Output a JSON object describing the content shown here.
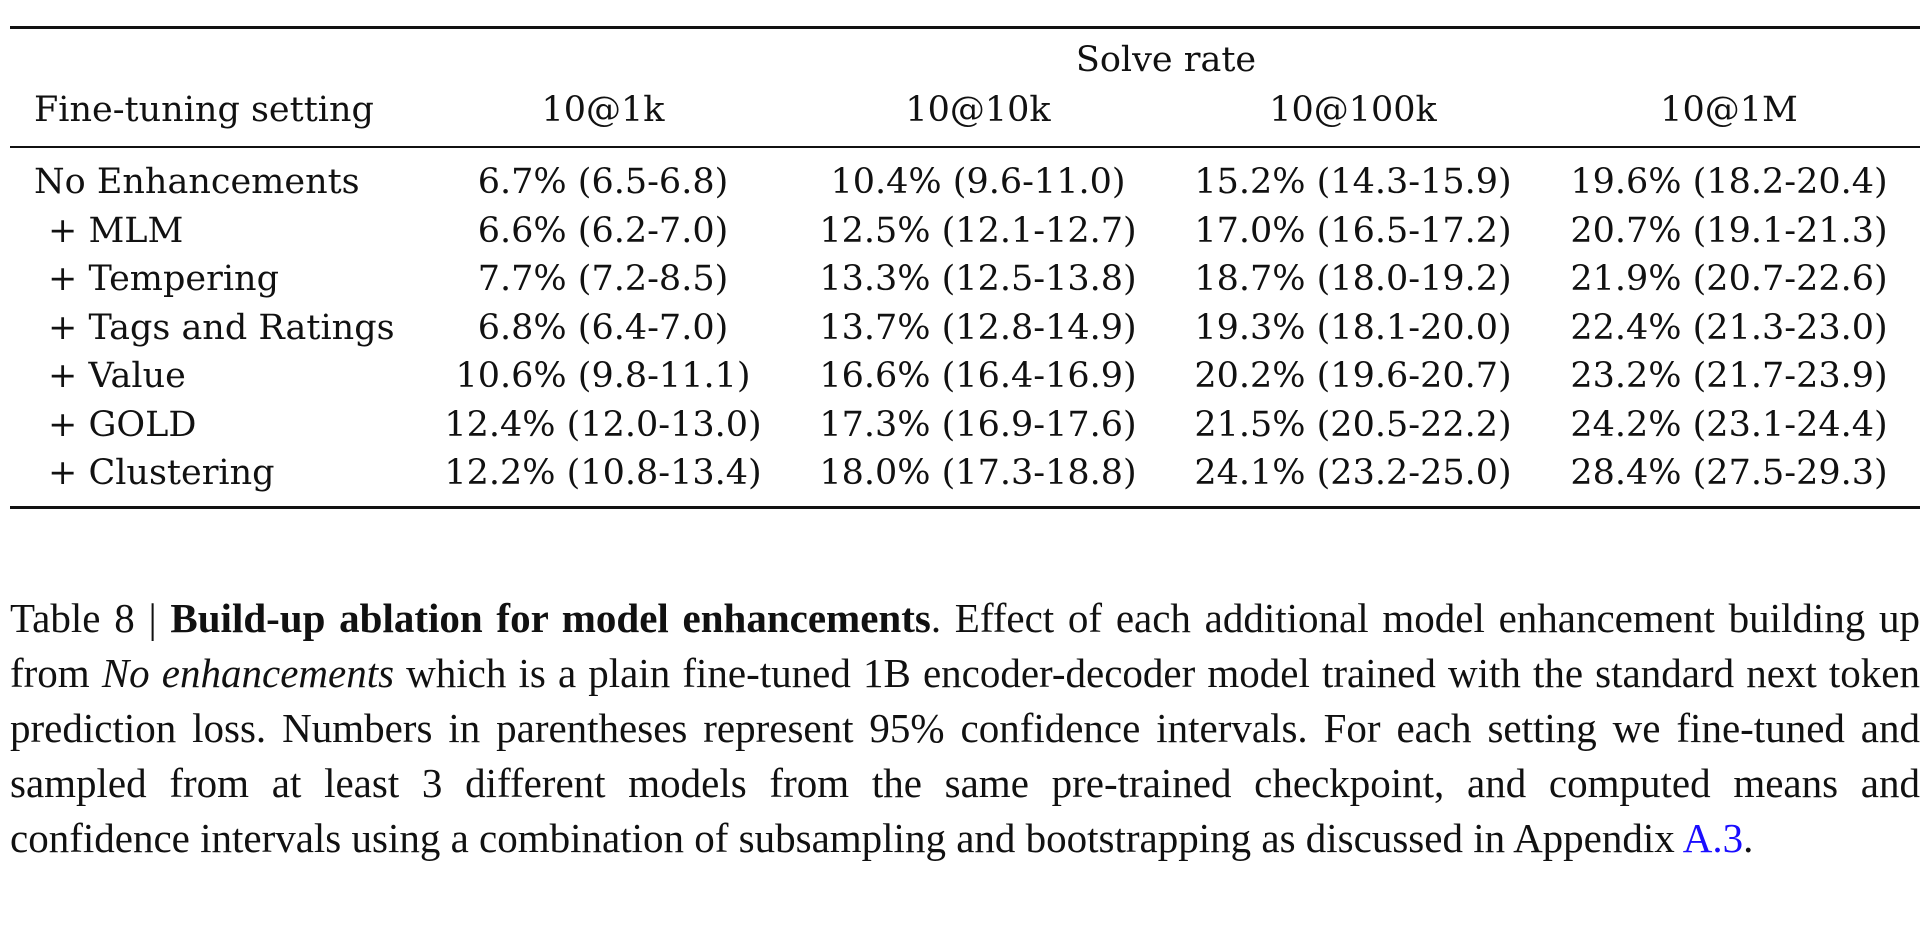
{
  "table": {
    "group_header": "Solve rate",
    "row_header": "Fine-tuning setting",
    "columns": [
      "10@1k",
      "10@10k",
      "10@100k",
      "10@1M"
    ],
    "rows": [
      {
        "label": "No Enhancements",
        "values": [
          "6.7% (6.5-6.8)",
          "10.4% (9.6-11.0)",
          "15.2% (14.3-15.9)",
          "19.6% (18.2-20.4)"
        ]
      },
      {
        "label": "+ MLM",
        "values": [
          "6.6% (6.2-7.0)",
          "12.5% (12.1-12.7)",
          "17.0% (16.5-17.2)",
          "20.7% (19.1-21.3)"
        ]
      },
      {
        "label": "+ Tempering",
        "values": [
          "7.7% (7.2-8.5)",
          "13.3% (12.5-13.8)",
          "18.7% (18.0-19.2)",
          "21.9% (20.7-22.6)"
        ]
      },
      {
        "label": "+ Tags and Ratings",
        "values": [
          "6.8% (6.4-7.0)",
          "13.7% (12.8-14.9)",
          "19.3% (18.1-20.0)",
          "22.4% (21.3-23.0)"
        ]
      },
      {
        "label": "+ Value",
        "values": [
          "10.6% (9.8-11.1)",
          "16.6% (16.4-16.9)",
          "20.2% (19.6-20.7)",
          "23.2% (21.7-23.9)"
        ]
      },
      {
        "label": "+ GOLD",
        "values": [
          "12.4% (12.0-13.0)",
          "17.3% (16.9-17.6)",
          "21.5% (20.5-22.2)",
          "24.2% (23.1-24.4)"
        ]
      },
      {
        "label": "+ Clustering",
        "values": [
          "12.2% (10.8-13.4)",
          "18.0% (17.3-18.8)",
          "24.1% (23.2-25.0)",
          "28.4% (27.5-29.3)"
        ]
      }
    ]
  },
  "caption": {
    "prefix": "Table 8 | ",
    "title": "Build-up ablation for model enhancements",
    "text_1": ". Effect of each additional model enhancement building up from ",
    "italic": "No enhancements",
    "text_2": " which is a plain fine-tuned 1B encoder-decoder model trained with the standard next token prediction loss. Numbers in parentheses represent 95% confidence intervals. For each setting we fine-tuned and sampled from at least 3 different models from the same pre-trained checkpoint, and computed means and confidence intervals using a combination of subsampling and bootstrapping as discussed in Appendix ",
    "link": "A.3",
    "text_3": "."
  }
}
